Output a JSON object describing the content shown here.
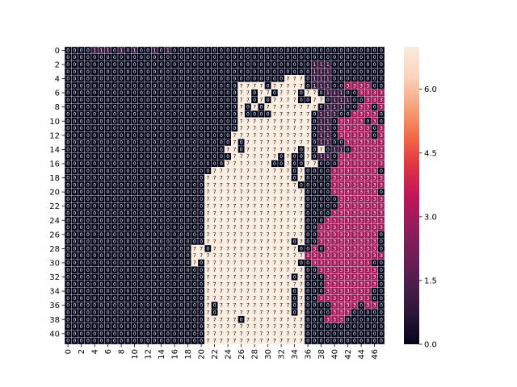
{
  "chart_data": {
    "type": "heatmap",
    "title": "",
    "xlabel": "",
    "ylabel": "",
    "annotated": true,
    "n_cols": 48,
    "n_rows": 42,
    "x_tick_labels": [
      "0",
      "2",
      "4",
      "6",
      "8",
      "10",
      "12",
      "14",
      "16",
      "18",
      "20",
      "22",
      "24",
      "26",
      "28",
      "30",
      "32",
      "34",
      "36",
      "38",
      "40",
      "42",
      "44",
      "46"
    ],
    "y_tick_labels": [
      "0",
      "2",
      "4",
      "6",
      "8",
      "10",
      "12",
      "14",
      "16",
      "18",
      "20",
      "22",
      "24",
      "26",
      "28",
      "30",
      "32",
      "34",
      "36",
      "38",
      "40"
    ],
    "colorbar": {
      "range": [
        0,
        7
      ],
      "tick_labels": [
        "0.0",
        "1.5",
        "3.0",
        "4.5",
        "6.0"
      ],
      "tick_values": [
        0,
        1.5,
        3.0,
        4.5,
        6.0
      ],
      "colormap": "rocket",
      "stops": [
        "#03051a",
        "#2a1638",
        "#4c1d4b",
        "#701f57",
        "#961c5b",
        "#c0165a",
        "#e13342",
        "#f26c48",
        "#f6a47c",
        "#fad4bc",
        "#faebdd"
      ]
    },
    "values_rle": [
      "4:0,3:1,1:0,1:1,1:0,1:1,2:0,1:1,1:0,1:1,32:0",
      "48:0",
      "37:0,3:1,8:0",
      "37:0,3:1,8:0",
      "33:0,3:7,1:0,3:1,8:0",
      "26:0,4:7,1:0,5:7,1:0,3:1,2:0,4:3,2:0",
      "26:0,2:7,1:0,2:7,1:0,3:7,1:0,2:7,1:0,3:1,2:0,4:3,2:0",
      "26:0,2:7,1:0,1:7,1:0,4:7,2:0,2:7,1:0,3:1,2:0,4:3,2:0",
      "26:0,1:7,1:0,1:7,1:0,8:7,1:0,3:1,2:0,2:3,1:0,1:3,2:0",
      "26:0,1:7,4:0,6:7,1:0,3:1,2:0,4:3,2:0",
      "26:0,11:7,1:0,2:1,1:0,4:3,1:0,1:3,2:0",
      "26:0,11:7,1:0,2:1,1:0,5:3,1:0,1:3,1:0",
      "25:0,12:7,1:0,2:1,1:0,5:3,1:0,1:3,1:0",
      "25:0,1:7,1:0,10:7,1:0,2:1,2:0,6:3,1:0",
      "24:0,2:7,1:0,8:7,1:0,1:7,1:0,1:7,1:0,2:1,1:0,7:3",
      "25:0,7:7,1:0,1:7,2:0,1:7,1:0,2:1,1:0,7:3",
      "24:0,7:7,2:0,1:7,2:0,2:7,3:0,7:3",
      "22:0,12:7,1:0,1:7,4:0,7:3,1:0",
      "21:0,13:7,1:0,1:7,4:0,8:3",
      "21:0,14:7,1:0,4:0,8:3",
      "21:0,15:7,4:0,7:3,1:0",
      "21:0,15:7,5:0,7:3",
      "21:0,15:7,5:0,7:3",
      "21:0,15:7,4:0,8:3",
      "21:0,15:7,3:0,9:3",
      "21:0,15:7,2:0,10:3",
      "21:0,15:7,2:0,9:3,1:0",
      "21:0,13:7,1:0,1:7,2:0,9:3,1:0",
      "19:0,2:7,1:0,13:7,1:0,1:0,1:3,1:0,8:3,2:0",
      "19:0,17:7,2:3,10:3,1:0",
      "19:0,1:7,1:0,14:7,2:0,9:3,3:0",
      "21:0,15:7,2:0,1:3,8:3,2:0",
      "21:0,13:7,1:0,1:7,3:0,8:3,2:0",
      "21:0,15:7,3:0,8:3,2:0",
      "21:0,13:7,1:0,1:7,3:0,7:3,3:0",
      "21:0,13:7,1:0,1:7,2:0,8:3,3:0",
      "21:0,1:7,1:0,11:7,1:0,1:7,4:0,4:3,1:0,2:3,3:0",
      "21:0,1:7,1:0,11:7,1:0,1:7,4:0,3:3,5:0",
      "21:0,5:7,1:0,9:7,3:0,3:3,6:0",
      "21:0,15:7,12:0",
      "21:0,15:7,12:0",
      "21:0,15:7,12:0"
    ]
  }
}
